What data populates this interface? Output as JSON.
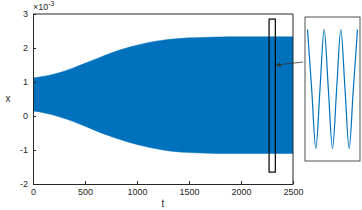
{
  "chart_data": {
    "type": "band",
    "x_label": "t",
    "y_label": "x",
    "annotations": [
      "×10",
      "-3"
    ],
    "color": "#0072bd",
    "x": [
      0,
      125,
      250,
      375,
      500,
      625,
      750,
      875,
      1000,
      1125,
      1250,
      1375,
      1500,
      1625,
      1750,
      1875,
      2000,
      2125,
      2250,
      2375,
      2500
    ],
    "upper": [
      1.12,
      1.18,
      1.27,
      1.4,
      1.55,
      1.7,
      1.85,
      1.98,
      2.08,
      2.17,
      2.23,
      2.27,
      2.3,
      2.31,
      2.32,
      2.33,
      2.33,
      2.33,
      2.33,
      2.33,
      2.33
    ],
    "lower": [
      0.15,
      0.08,
      -0.02,
      -0.15,
      -0.3,
      -0.46,
      -0.6,
      -0.73,
      -0.84,
      -0.93,
      -1.0,
      -1.05,
      -1.07,
      -1.09,
      -1.1,
      -1.1,
      -1.1,
      -1.1,
      -1.1,
      -1.1,
      -1.1
    ],
    "xlim": [
      0,
      2500
    ],
    "xticks": [
      0,
      500,
      1000,
      1500,
      2000,
      2500
    ],
    "ylim": [
      -2,
      3
    ],
    "yticks": [
      -2,
      -1,
      0,
      1,
      2,
      3
    ],
    "zoom_box": {
      "xlim": [
        2270,
        2330
      ],
      "ylim": [
        -1.65,
        2.85
      ]
    },
    "inset": {
      "x": [
        2286,
        2288.75,
        2291.5,
        2294.25,
        2297,
        2299.75,
        2302.5,
        2305.25,
        2308,
        2310.75,
        2313.5,
        2316.25,
        2319
      ],
      "values": [
        2.3,
        0.6,
        -1.1,
        0.6,
        2.3,
        0.6,
        -1.1,
        0.6,
        2.3,
        0.6,
        -1.1,
        0.6,
        2.3
      ],
      "xlim": [
        2285,
        2320
      ],
      "ylim": [
        -1.4,
        2.6
      ]
    }
  }
}
